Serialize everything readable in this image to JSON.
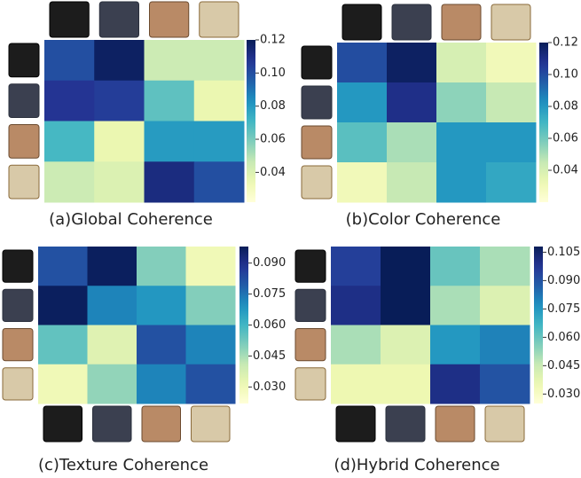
{
  "chart_data": [
    {
      "type": "heatmap",
      "title": "(a)Global Coherence",
      "colormap": "YlGnBu",
      "values": [
        [
          0.1,
          0.118,
          0.045,
          0.045
        ],
        [
          0.108,
          0.105,
          0.065,
          0.035
        ],
        [
          0.07,
          0.035,
          0.08,
          0.08
        ],
        [
          0.045,
          0.04,
          0.112,
          0.1
        ]
      ],
      "clim": [
        0.022,
        0.12
      ],
      "cticks": [
        0.12,
        {
          "value": 0.1,
          "label": "0.10"
        },
        0.08,
        0.06,
        0.04
      ]
    },
    {
      "type": "heatmap",
      "title": "(b)Color Coherence",
      "colormap": "YlGnBu",
      "values": [
        [
          0.1,
          0.118,
          0.04,
          0.03
        ],
        [
          0.08,
          0.11,
          0.055,
          0.045
        ],
        [
          0.065,
          0.05,
          0.08,
          0.08
        ],
        [
          0.03,
          0.045,
          0.08,
          0.075
        ]
      ],
      "clim": [
        0.02,
        0.12
      ],
      "cticks": [
        0.12,
        {
          "value": 0.1,
          "label": "0.10"
        },
        0.08,
        0.06,
        0.04
      ]
    },
    {
      "type": "heatmap",
      "title": "(c)Texture Coherence",
      "colormap": "YlGnBu",
      "values": [
        [
          0.082,
          0.097,
          0.05,
          0.03
        ],
        [
          0.097,
          0.072,
          0.068,
          0.05
        ],
        [
          0.055,
          0.035,
          0.082,
          0.072
        ],
        [
          0.03,
          0.048,
          0.072,
          0.082
        ]
      ],
      "clim": [
        0.022,
        0.098
      ],
      "cticks": [
        {
          "value": 0.09,
          "label": "0.090"
        },
        0.075,
        {
          "value": 0.06,
          "label": "0.060"
        },
        0.045,
        {
          "value": 0.03,
          "label": "0.030"
        }
      ]
    },
    {
      "type": "heatmap",
      "title": "(d)Hybrid Coherence",
      "colormap": "YlGnBu",
      "values": [
        [
          0.095,
          0.108,
          0.06,
          0.05
        ],
        [
          0.1,
          0.108,
          0.05,
          0.04
        ],
        [
          0.05,
          0.04,
          0.075,
          0.08
        ],
        [
          0.035,
          0.035,
          0.1,
          0.09
        ]
      ],
      "clim": [
        0.025,
        0.108
      ],
      "cticks": [
        0.105,
        {
          "value": 0.09,
          "label": "0.090"
        },
        0.075,
        {
          "value": 0.06,
          "label": "0.060"
        },
        0.045,
        {
          "value": 0.03,
          "label": "0.030"
        }
      ]
    }
  ]
}
